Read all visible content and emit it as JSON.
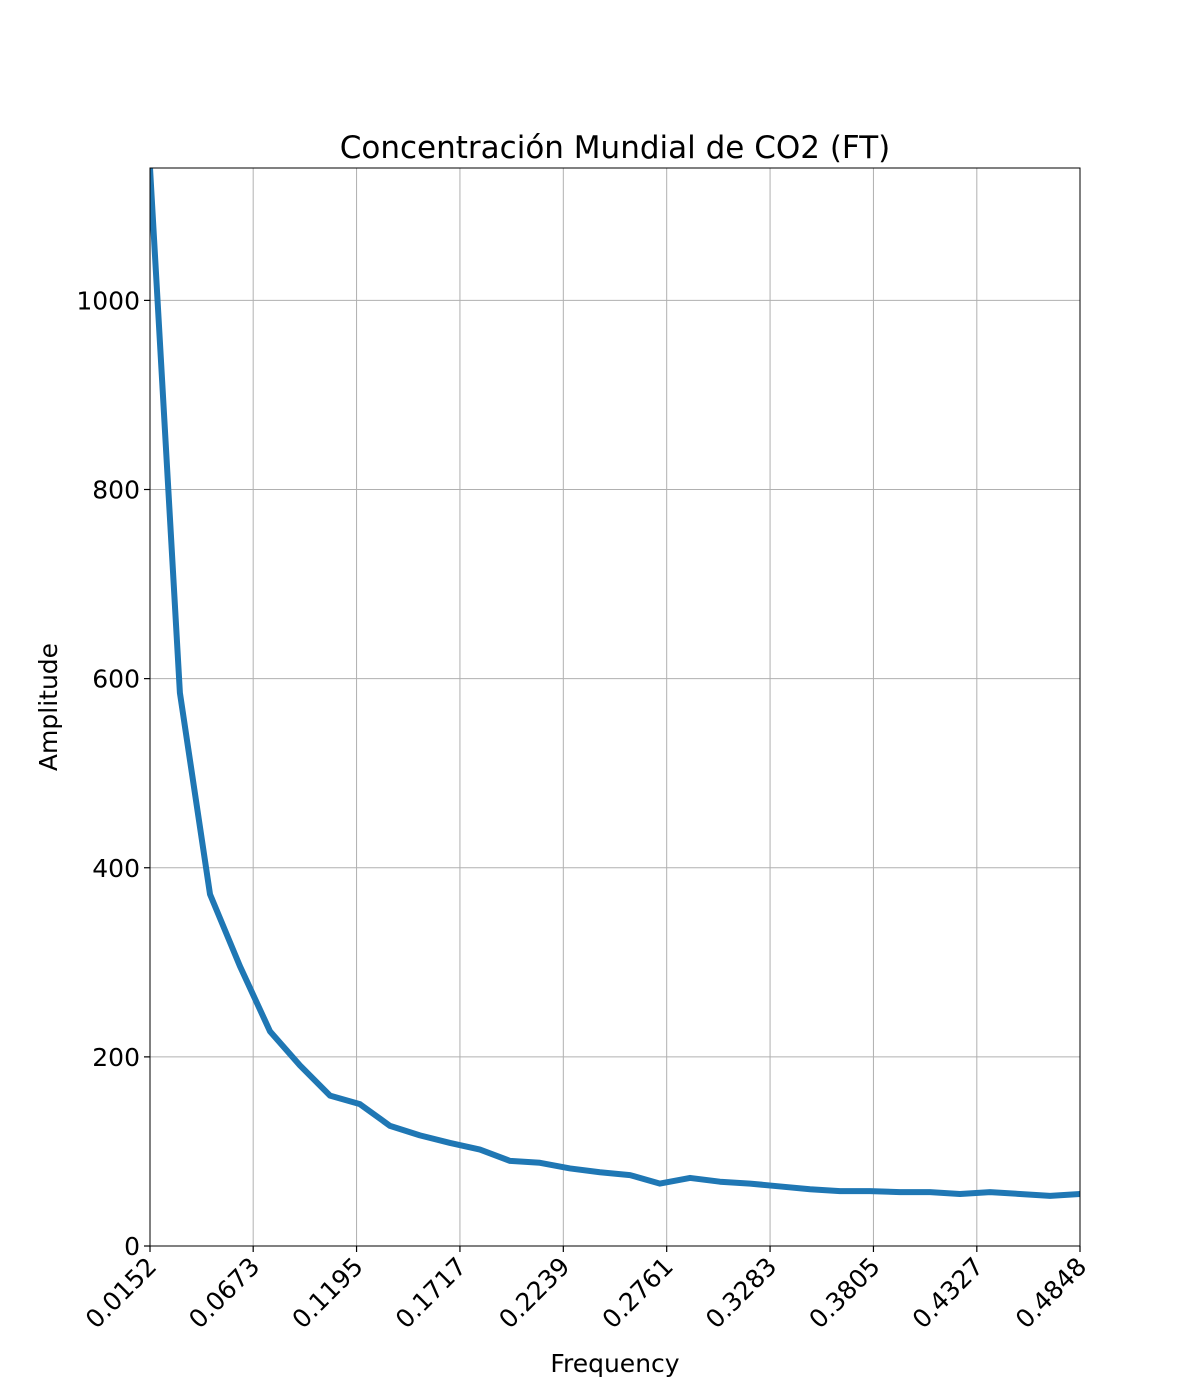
{
  "chart_data": {
    "type": "line",
    "title": "Concentración Mundial de CO2 (FT)",
    "xlabel": "Frequency",
    "ylabel": "Amplitude",
    "xlim": [
      0.0152,
      0.4848
    ],
    "ylim": [
      0,
      1140
    ],
    "xticks": [
      "0.0152",
      "0.0673",
      "0.1195",
      "0.1717",
      "0.2239",
      "0.2761",
      "0.3283",
      "0.3805",
      "0.4327",
      "0.4848"
    ],
    "yticks": [
      "0",
      "200",
      "400",
      "600",
      "800",
      "1000"
    ],
    "grid": true,
    "legend": "none",
    "series": [
      {
        "color": "#1f77b4",
        "x": [
          0.0152,
          0.0303,
          0.0455,
          0.0606,
          0.0758,
          0.0909,
          0.1061,
          0.1212,
          0.1364,
          0.1515,
          0.1667,
          0.1818,
          0.197,
          0.2121,
          0.2273,
          0.2424,
          0.2576,
          0.2727,
          0.2879,
          0.303,
          0.3182,
          0.3333,
          0.3485,
          0.3636,
          0.3788,
          0.3939,
          0.4091,
          0.4242,
          0.4394,
          0.4545,
          0.4697,
          0.4848
        ],
        "y": [
          1140,
          585,
          372,
          296,
          227,
          191,
          159,
          150,
          127,
          117,
          109,
          102,
          90,
          88,
          82,
          78,
          75,
          66,
          72,
          68,
          66,
          63,
          60,
          58,
          58,
          57,
          57,
          55,
          57,
          55,
          53,
          55
        ]
      }
    ]
  }
}
